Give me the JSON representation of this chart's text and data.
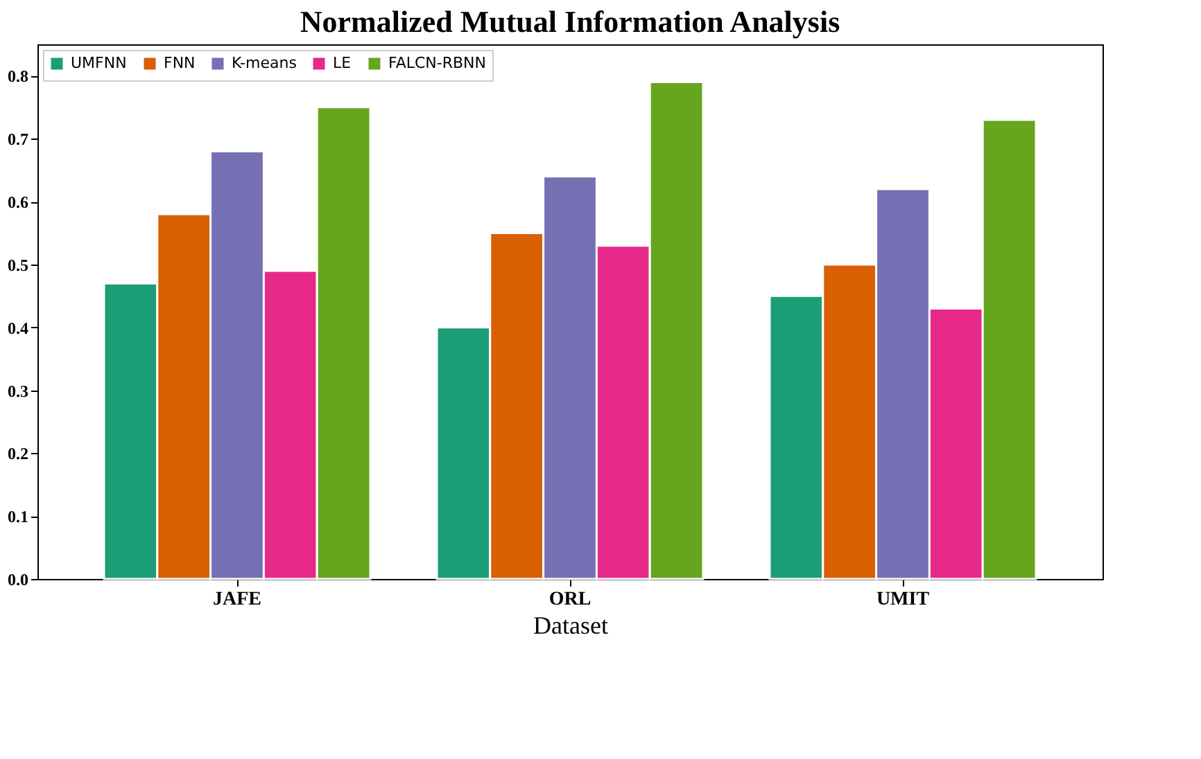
{
  "chart_data": {
    "type": "bar",
    "title": "Normalized Mutual Information Analysis",
    "xlabel": "Dataset",
    "categories": [
      "JAFE",
      "ORL",
      "UMIT"
    ],
    "series": [
      {
        "name": "UMFNN",
        "color": "#1b9e77",
        "values": [
          0.47,
          0.4,
          0.45
        ]
      },
      {
        "name": "FNN",
        "color": "#d95f02",
        "values": [
          0.58,
          0.55,
          0.5
        ]
      },
      {
        "name": "K-means",
        "color": "#7570b3",
        "values": [
          0.68,
          0.64,
          0.62
        ]
      },
      {
        "name": "LE",
        "color": "#e7298a",
        "values": [
          0.49,
          0.53,
          0.43
        ]
      },
      {
        "name": "FALCN-RBNN",
        "color": "#66a61e",
        "values": [
          0.75,
          0.79,
          0.73
        ]
      }
    ],
    "ylim": [
      0,
      0.85
    ],
    "yticks": [
      {
        "value": 0,
        "label": "0.0"
      },
      0.1,
      0.2,
      0.3,
      0.4,
      0.5,
      0.6,
      0.7,
      0.8
    ],
    "grid": false,
    "legend": "top left"
  }
}
